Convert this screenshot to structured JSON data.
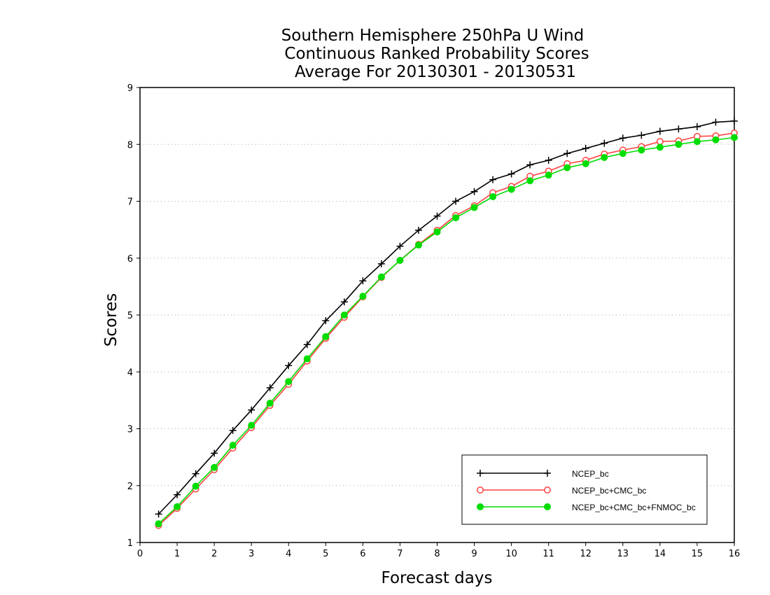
{
  "chart_data": {
    "type": "line",
    "title_lines": [
      "Southern Hemisphere 250hPa U Wind",
      "Continuous Ranked Probability Scores",
      "Average For 20130301 - 20130531"
    ],
    "xlabel": "Forecast days",
    "ylabel": "Scores",
    "xlim": [
      0,
      16
    ],
    "ylim": [
      1,
      9
    ],
    "xticks": [
      "0",
      "1",
      "2",
      "3",
      "4",
      "5",
      "6",
      "7",
      "8",
      "9",
      "10",
      "11",
      "12",
      "13",
      "14",
      "15",
      "16"
    ],
    "yticks": [
      "1",
      "2",
      "3",
      "4",
      "5",
      "6",
      "7",
      "8",
      "9"
    ],
    "grid": "horizontal dotted",
    "legend_position": "bottom-right",
    "x": [
      0.5,
      1,
      1.5,
      2,
      2.5,
      3,
      3.5,
      4,
      4.5,
      5,
      5.5,
      6,
      6.5,
      7,
      7.5,
      8,
      8.5,
      9,
      9.5,
      10,
      10.5,
      11,
      11.5,
      12,
      12.5,
      13,
      13.5,
      14,
      14.5,
      15,
      15.5,
      16
    ],
    "series": [
      {
        "name": "NCEP_bc",
        "color": "#000000",
        "marker": "plus",
        "values": [
          1.5,
          1.84,
          2.21,
          2.57,
          2.97,
          3.33,
          3.72,
          4.11,
          4.48,
          4.9,
          5.23,
          5.6,
          5.9,
          6.21,
          6.49,
          6.74,
          7.0,
          7.17,
          7.38,
          7.48,
          7.64,
          7.72,
          7.84,
          7.93,
          8.02,
          8.11,
          8.16,
          8.23,
          8.27,
          8.31,
          8.39,
          8.41
        ]
      },
      {
        "name": "NCEP_bc+CMC_bc",
        "color": "#ff4040",
        "marker": "open-circle",
        "values": [
          1.3,
          1.6,
          1.94,
          2.28,
          2.66,
          3.02,
          3.41,
          3.78,
          4.19,
          4.59,
          4.96,
          5.32,
          5.66,
          5.96,
          6.24,
          6.49,
          6.75,
          6.92,
          7.15,
          7.26,
          7.44,
          7.53,
          7.66,
          7.72,
          7.83,
          7.9,
          7.96,
          8.05,
          8.06,
          8.14,
          8.15,
          8.2
        ]
      },
      {
        "name": "NCEP_bc+CMC_bc+FNMOC_bc",
        "color": "#00dd00",
        "marker": "filled-circle",
        "values": [
          1.33,
          1.63,
          1.99,
          2.32,
          2.71,
          3.06,
          3.45,
          3.83,
          4.23,
          4.62,
          5.0,
          5.33,
          5.67,
          5.96,
          6.23,
          6.46,
          6.71,
          6.89,
          7.08,
          7.21,
          7.36,
          7.46,
          7.59,
          7.66,
          7.77,
          7.84,
          7.9,
          7.95,
          8.0,
          8.05,
          8.08,
          8.12
        ]
      }
    ]
  }
}
